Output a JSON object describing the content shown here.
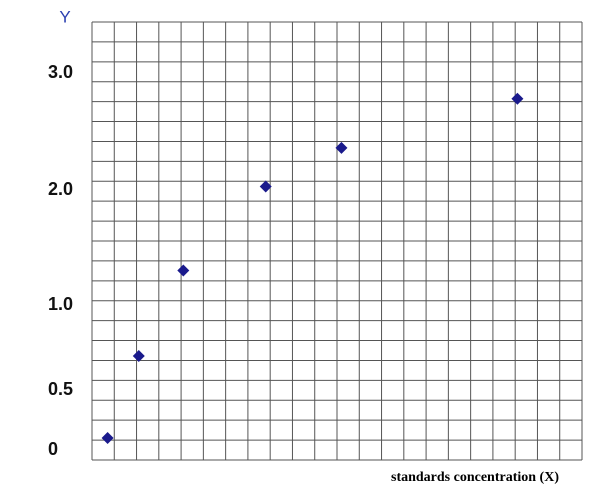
{
  "chart_data": {
    "type": "scatter",
    "y_label": "Y",
    "x_label": "standards concentration (X)",
    "x": [
      0.7,
      2.1,
      4.1,
      7.8,
      11.2,
      19.1
    ],
    "values": [
      0.1,
      0.7,
      1.3,
      2.03,
      2.36,
      2.78
    ],
    "color": "#1a1a8c",
    "xlim": [
      0,
      22
    ],
    "ylim": [
      0,
      3.4
    ],
    "yticks": [
      0,
      0.5,
      {
        "value": 1,
        "label": "1.0"
      },
      {
        "value": 2,
        "label": "2.0"
      },
      {
        "value": 3,
        "label": "3.0"
      }
    ],
    "grid": true
  }
}
